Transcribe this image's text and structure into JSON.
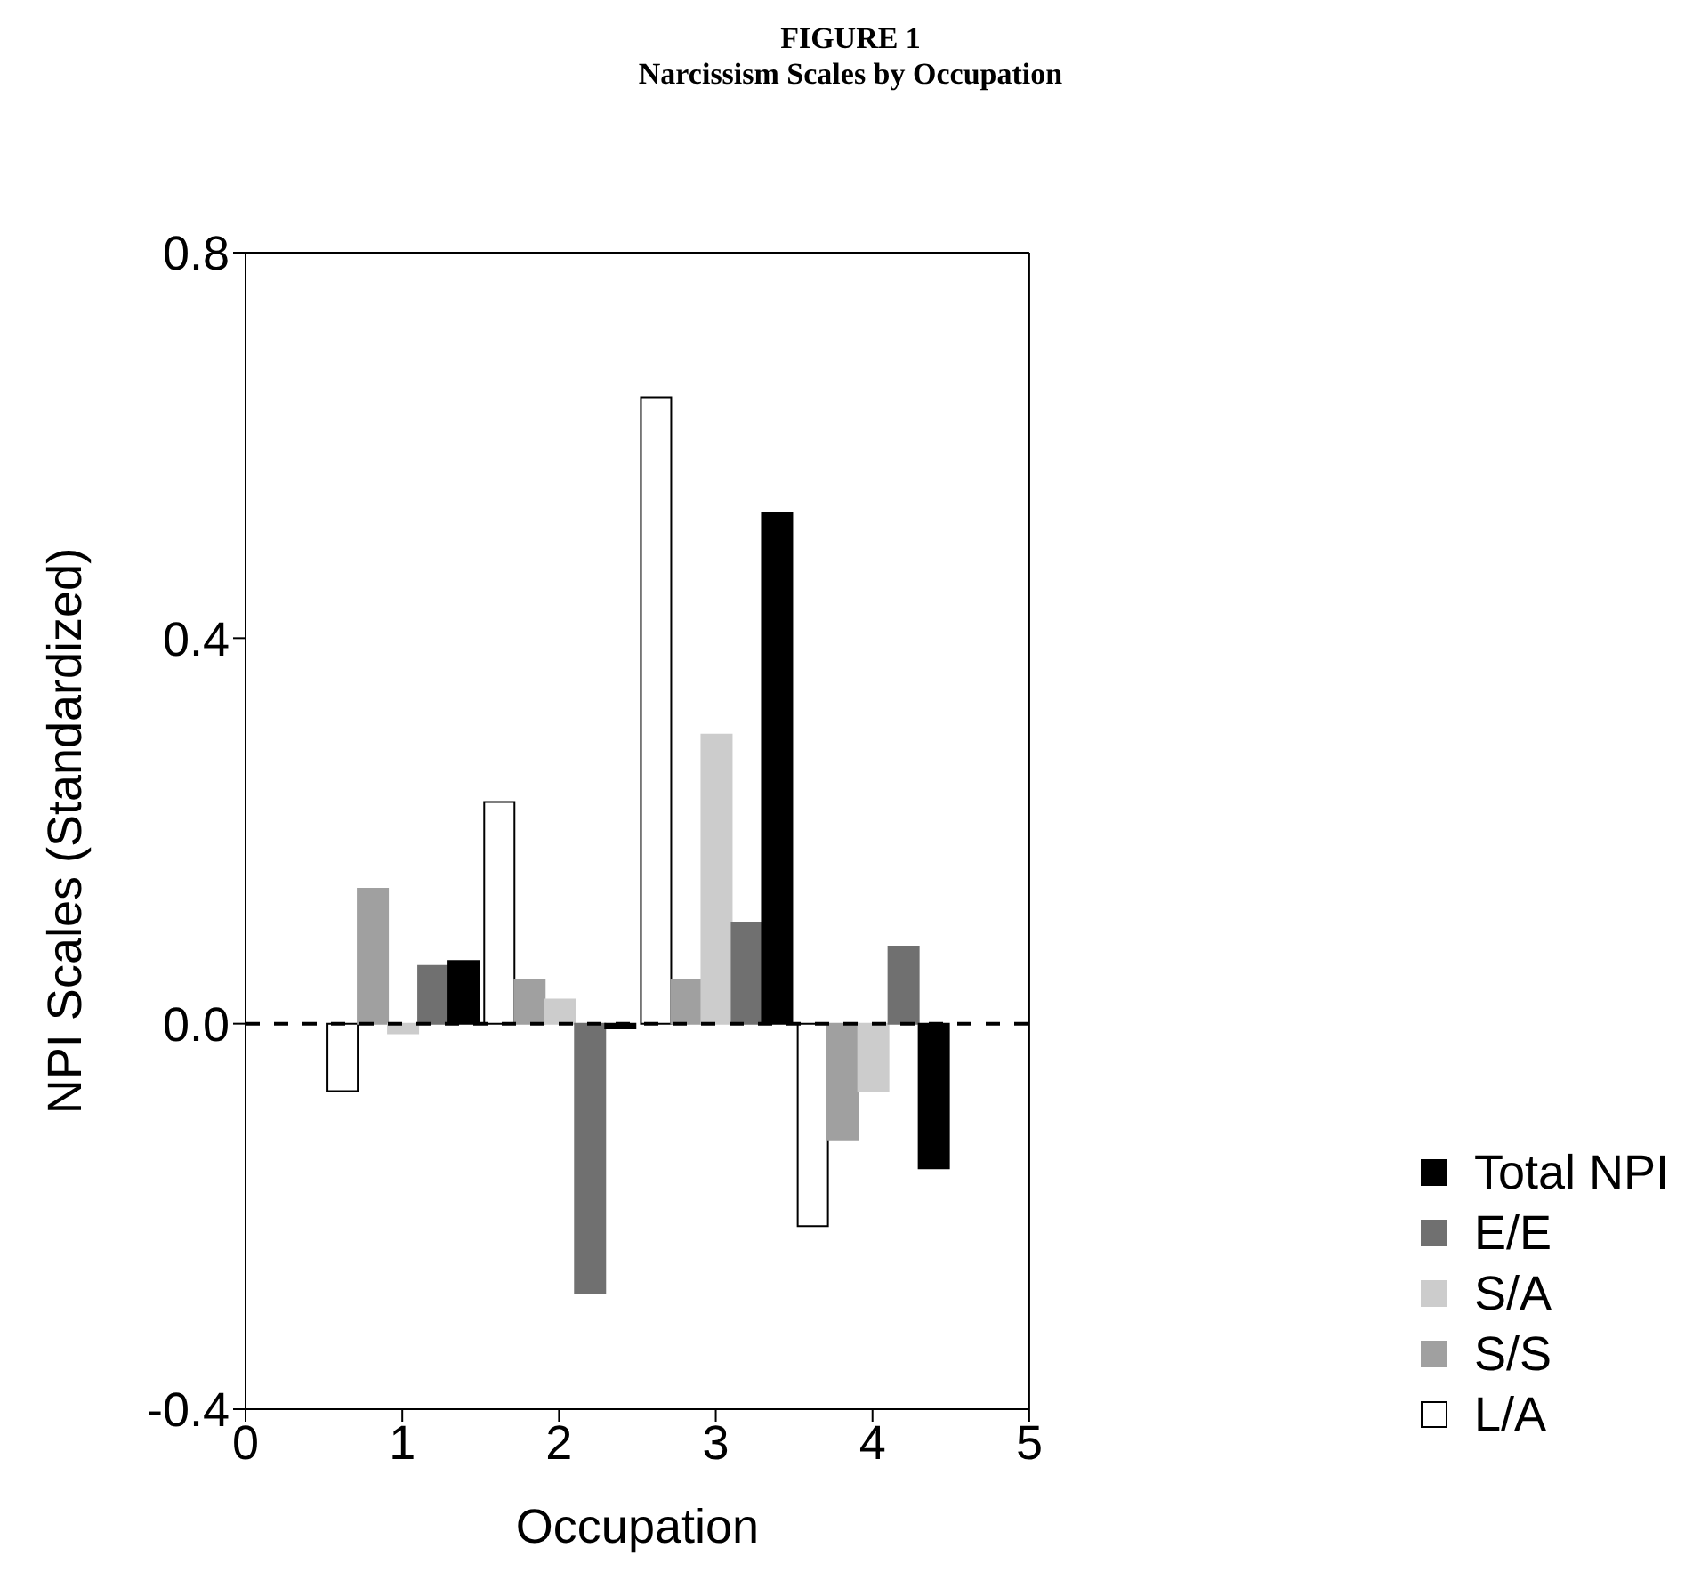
{
  "chart_data": {
    "type": "bar",
    "title": "FIGURE 1",
    "subtitle": "Narcissism Scales by Occupation",
    "xlabel": "Occupation",
    "ylabel": "NPI Scales (Standardized)",
    "x": [
      1,
      2,
      3,
      4
    ],
    "series": [
      {
        "name": "L/A",
        "color": "#ffffff",
        "values": [
          -0.07,
          0.23,
          0.65,
          -0.21
        ]
      },
      {
        "name": "S/S",
        "color": "#a0a0a0",
        "values": [
          0.14,
          0.045,
          0.045,
          -0.12
        ]
      },
      {
        "name": "S/A",
        "color": "#cccccc",
        "values": [
          -0.01,
          0.025,
          0.3,
          -0.07
        ]
      },
      {
        "name": "E/E",
        "color": "#707070",
        "values": [
          0.06,
          -0.28,
          0.105,
          0.08
        ]
      },
      {
        "name": "Total NPI",
        "color": "#000000",
        "values": [
          0.065,
          -0.005,
          0.53,
          -0.15
        ]
      }
    ],
    "xlim": [
      0,
      5
    ],
    "xticks": [
      0,
      1,
      2,
      3,
      4,
      5
    ],
    "ylim": [
      -0.4,
      0.8
    ],
    "yticks": [
      -0.4,
      {
        "value": 0,
        "label": "0.0"
      },
      0.4,
      0.8
    ],
    "ref_lines": [
      {
        "axis": "y",
        "value": 0,
        "line_style": "dashed",
        "color": "#000000"
      }
    ],
    "grid": false,
    "legend": "bottom right"
  }
}
